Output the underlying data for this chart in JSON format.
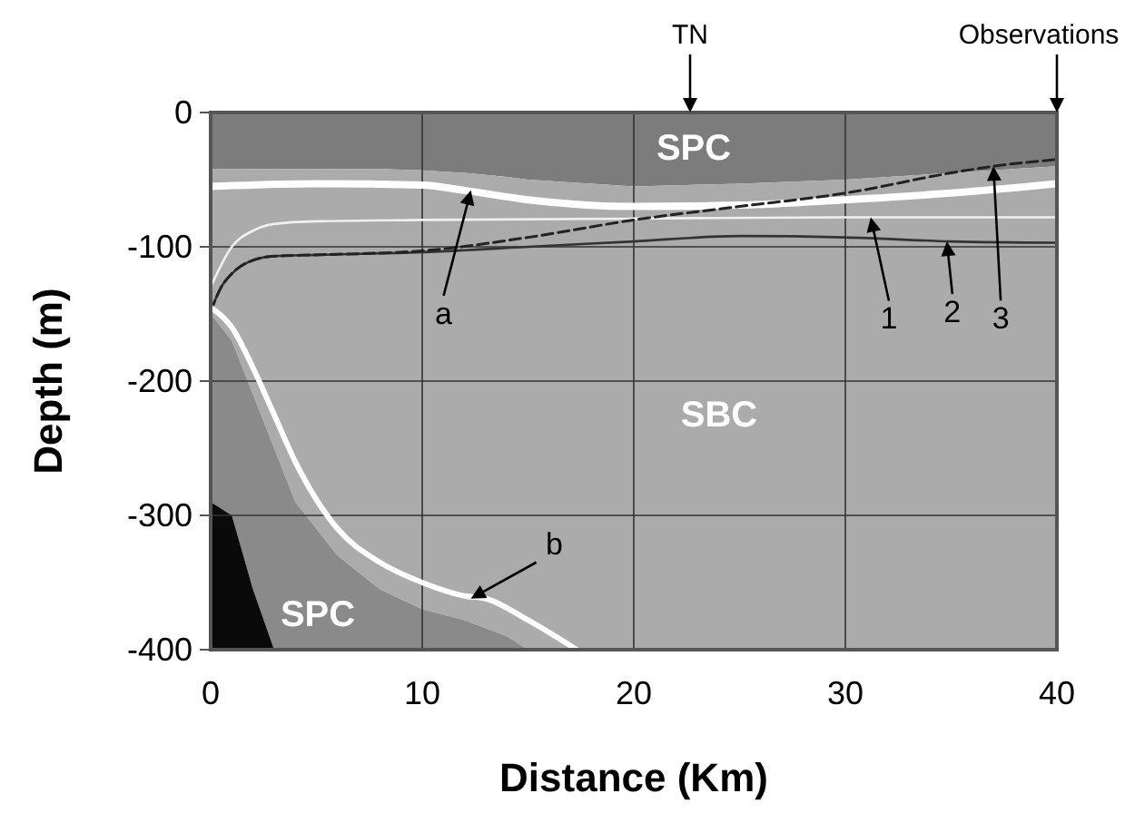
{
  "chart_data": {
    "type": "area",
    "stacked": true,
    "xlabel": "Distance (Km)",
    "ylabel": "Depth (m)",
    "xlim": [
      0,
      40
    ],
    "ylim": [
      -400,
      0
    ],
    "xticks": [
      0,
      10,
      20,
      30,
      40
    ],
    "yticks": [
      -400,
      -300,
      -200,
      -100,
      0
    ],
    "grid": true,
    "x": [
      0,
      1,
      2,
      3,
      4,
      6,
      8,
      10,
      12,
      14,
      15,
      20,
      25,
      30,
      35,
      40
    ],
    "series": [
      {
        "color": "#7c7c7c",
        "values": [
          -42,
          -42,
          -42,
          -42,
          -42,
          -42,
          -42,
          -43,
          -45,
          -48,
          -50,
          -55,
          -53,
          -50,
          -45,
          -40
        ]
      },
      {
        "color": "#ababab",
        "values": [
          -108,
          -128,
          -168,
          -208,
          -248,
          -288,
          -313,
          -327,
          -333,
          -342,
          -350,
          -345,
          -347,
          -350,
          -355,
          -360
        ]
      },
      {
        "color": "#8a8a8a",
        "values": [
          -140,
          -130,
          -145,
          -150,
          -110,
          -70,
          -45,
          -30,
          -22,
          -10,
          0,
          0,
          0,
          0,
          0,
          0
        ]
      },
      {
        "color": "#0a0a0a",
        "values": [
          -110,
          -100,
          -45,
          0,
          0,
          0,
          0,
          0,
          0,
          0,
          0,
          0,
          0,
          0,
          0,
          0
        ]
      },
      {
        "type": "line",
        "color": "#ffffff",
        "x": [
          0,
          5,
          10,
          12,
          15,
          20,
          25,
          30,
          35,
          40
        ],
        "values": [
          -55,
          -53,
          -54,
          -58,
          -65,
          -70,
          -69,
          -65,
          -60,
          -53
        ]
      },
      {
        "type": "line",
        "color": "#f0f0f0",
        "x": [
          0,
          1,
          2,
          3,
          5,
          10,
          20,
          30,
          40
        ],
        "values": [
          -130,
          -100,
          -88,
          -83,
          -81,
          -80,
          -79,
          -78,
          -78
        ]
      },
      {
        "type": "line",
        "color": "#333333",
        "x": [
          0,
          0.5,
          1,
          2,
          3,
          5,
          10,
          15,
          20,
          25,
          30,
          35,
          40
        ],
        "values": [
          -148,
          -130,
          -120,
          -110,
          -107,
          -106,
          -104,
          -100,
          -96,
          -92,
          -93,
          -96,
          -97
        ]
      },
      {
        "type": "line",
        "color": "#222222",
        "line_style": "dashed",
        "x": [
          0,
          0.5,
          1,
          2,
          3,
          5,
          10,
          15,
          20,
          25,
          30,
          35,
          37,
          40
        ],
        "values": [
          -148,
          -130,
          -120,
          -110,
          -107,
          -106,
          -103,
          -93,
          -80,
          -70,
          -60,
          -45,
          -40,
          -35
        ]
      },
      {
        "type": "line",
        "color": "#ffffff",
        "x": [
          0,
          1,
          2,
          3,
          4,
          6,
          8,
          10,
          12,
          13,
          15,
          17.3
        ],
        "values": [
          -145,
          -160,
          -190,
          -225,
          -260,
          -310,
          -335,
          -350,
          -360,
          -362,
          -378,
          -400
        ]
      }
    ],
    "annotations": [
      "TN",
      "Observations",
      "SPC",
      "SBC",
      "SPC",
      {
        "text": "a",
        "x": 12.3,
        "y": -58
      },
      {
        "text": "b",
        "x": 12.3,
        "y": -362
      },
      {
        "text": "1",
        "x": 31.2,
        "y": -78
      },
      {
        "text": "2",
        "x": 34.8,
        "y": -96
      },
      {
        "text": "3",
        "x": 37,
        "y": -40
      }
    ]
  }
}
